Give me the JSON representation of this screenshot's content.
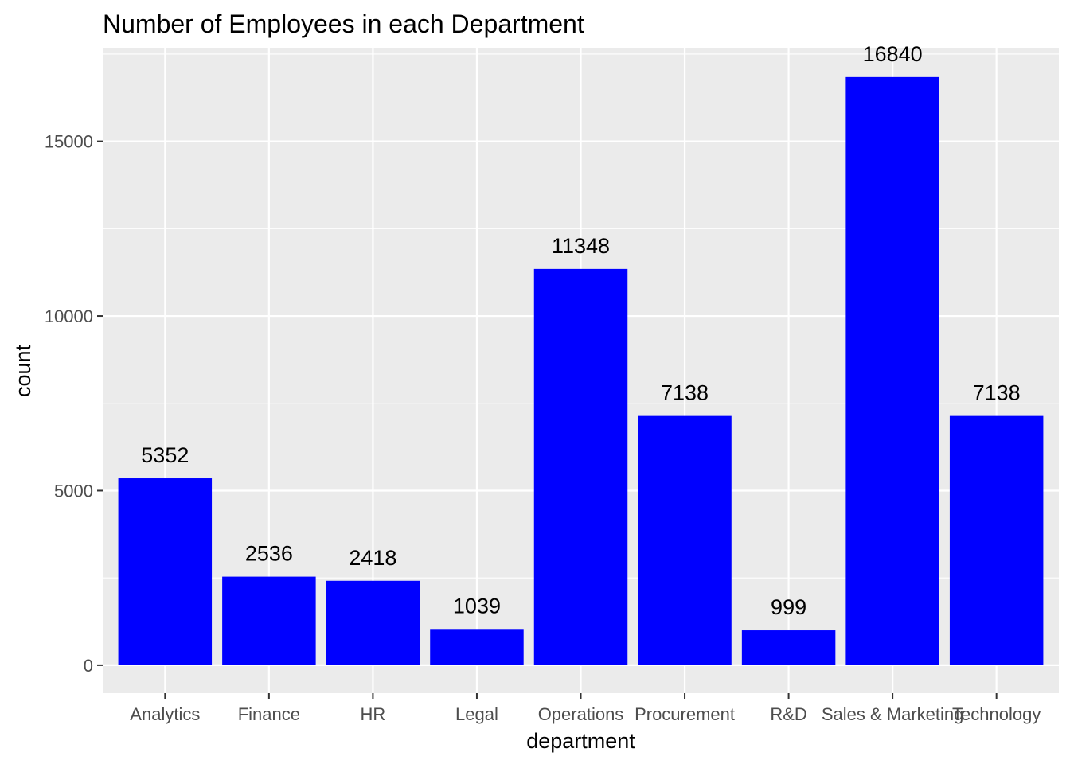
{
  "chart_data": {
    "type": "bar",
    "title": "Number of Employees in each Department",
    "xlabel": "department",
    "ylabel": "count",
    "categories": [
      "Analytics",
      "Finance",
      "HR",
      "Legal",
      "Operations",
      "Procurement",
      "R&D",
      "Sales & Marketing",
      "Technology"
    ],
    "values": [
      5352,
      2536,
      2418,
      1039,
      11348,
      7138,
      999,
      16840,
      7138
    ],
    "data_labels": [
      "5352",
      "2536",
      "2418",
      "1039",
      "11348",
      "7138",
      "999",
      "16840",
      "7138"
    ],
    "ylim": [
      -800,
      17680
    ],
    "yticks": [
      0,
      5000,
      10000,
      15000
    ],
    "ytick_labels": [
      "0",
      "5000",
      "10000",
      "15000"
    ],
    "grid": true,
    "legend": "none",
    "colors": {
      "bar": "#0000ff",
      "panel_background": "#ebebeb",
      "grid": "#ffffff",
      "tick_text": "#4d4d4d",
      "tick_mark": "#333333"
    }
  }
}
